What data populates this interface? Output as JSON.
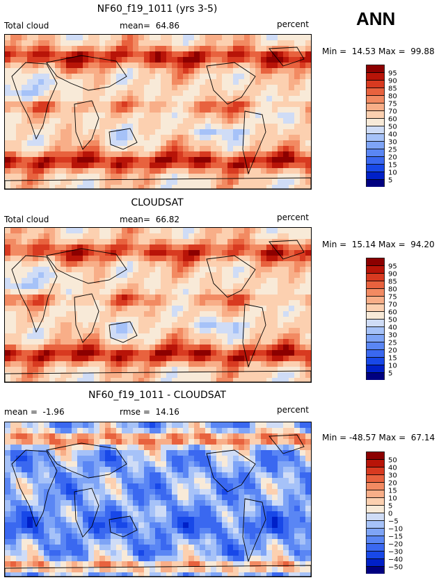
{
  "season": "ANN",
  "panels": [
    {
      "title": "NF60_f19_1011 (yrs 3-5)",
      "left_label": "Total cloud",
      "center_label": "mean=  64.86",
      "right_label": "percent",
      "minmax": "Min =  14.53 Max =  99.88"
    },
    {
      "title": "CLOUDSAT",
      "left_label": "Total cloud",
      "center_label": "mean=  66.82",
      "right_label": "percent",
      "minmax": "Min =  15.14 Max =  94.20"
    },
    {
      "title": "NF60_f19_1011 - CLOUDSAT",
      "left_label": "mean =  -1.96",
      "center_label": "rmse =  14.16",
      "right_label": "percent",
      "minmax": "Min = -48.57 Max =  67.14"
    }
  ],
  "chart_data": [
    {
      "type": "heatmap",
      "title": "NF60_f19_1011 (yrs 3-5)",
      "variable": "Total cloud",
      "units": "percent",
      "mean": 64.86,
      "min": 14.53,
      "max": 99.88,
      "levels": [
        5,
        10,
        15,
        20,
        25,
        30,
        40,
        50,
        60,
        70,
        75,
        80,
        85,
        90,
        95
      ],
      "colors": [
        "#000080",
        "#0020c8",
        "#1848e8",
        "#3a68f0",
        "#5a86f4",
        "#7ea4f6",
        "#a6c2f8",
        "#cfdcf6",
        "#f8ead8",
        "#fcd0b0",
        "#f8ae88",
        "#f28a62",
        "#e8623e",
        "#d83a20",
        "#b81408",
        "#8c0000"
      ]
    },
    {
      "type": "heatmap",
      "title": "CLOUDSAT",
      "variable": "Total cloud",
      "units": "percent",
      "mean": 66.82,
      "min": 15.14,
      "max": 94.2,
      "levels": [
        5,
        10,
        15,
        20,
        25,
        30,
        40,
        50,
        60,
        70,
        75,
        80,
        85,
        90,
        95
      ],
      "colors": [
        "#000080",
        "#0020c8",
        "#1848e8",
        "#3a68f0",
        "#5a86f4",
        "#7ea4f6",
        "#a6c2f8",
        "#cfdcf6",
        "#f8ead8",
        "#fcd0b0",
        "#f8ae88",
        "#f28a62",
        "#e8623e",
        "#d83a20",
        "#b81408",
        "#8c0000"
      ]
    },
    {
      "type": "heatmap",
      "title": "NF60_f19_1011 - CLOUDSAT",
      "units": "percent",
      "mean": -1.96,
      "rmse": 14.16,
      "min": -48.57,
      "max": 67.14,
      "levels": [
        -50,
        -40,
        -30,
        -20,
        -15,
        -10,
        -5,
        0,
        5,
        10,
        15,
        20,
        30,
        40,
        50
      ],
      "colors": [
        "#000080",
        "#0020c8",
        "#1848e8",
        "#3a68f0",
        "#5a86f4",
        "#7ea4f6",
        "#a6c2f8",
        "#cfdcf6",
        "#f8ead8",
        "#fcd0b0",
        "#f8ae88",
        "#f28a62",
        "#e8623e",
        "#d83a20",
        "#b81408",
        "#8c0000"
      ]
    }
  ]
}
